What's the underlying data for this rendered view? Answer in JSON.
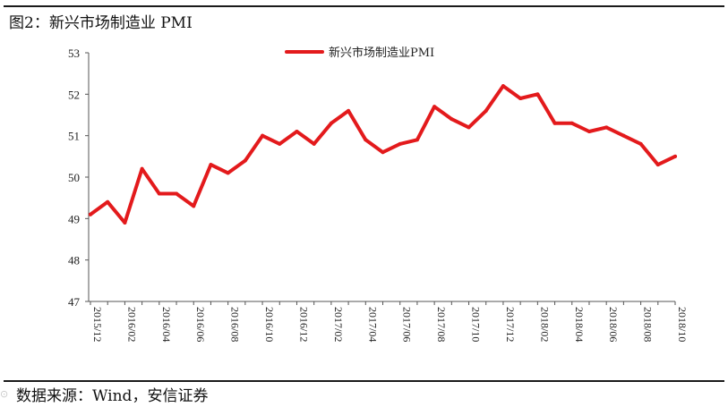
{
  "title": "图2：新兴市场制造业 PMI",
  "source": "数据来源：Wind，安信证券",
  "watermark_icon": "watermark-logo",
  "colors": {
    "line": "#e31a1c",
    "axis": "#555555"
  },
  "chart_data": {
    "type": "line",
    "title": "图2：新兴市场制造业 PMI",
    "xlabel": "",
    "ylabel": "",
    "ylim": [
      47,
      53
    ],
    "yticks": [
      47,
      48,
      49,
      50,
      51,
      52,
      53
    ],
    "grid": false,
    "legend": "top-center",
    "x": [
      "2015/12",
      "2016/01",
      "2016/02",
      "2016/03",
      "2016/04",
      "2016/05",
      "2016/06",
      "2016/07",
      "2016/08",
      "2016/09",
      "2016/10",
      "2016/11",
      "2016/12",
      "2017/01",
      "2017/02",
      "2017/03",
      "2017/04",
      "2017/05",
      "2017/06",
      "2017/07",
      "2017/08",
      "2017/09",
      "2017/10",
      "2017/11",
      "2017/12",
      "2018/01",
      "2018/02",
      "2018/03",
      "2018/04",
      "2018/05",
      "2018/06",
      "2018/07",
      "2018/08",
      "2018/09",
      "2018/10"
    ],
    "xtick_labels": [
      "2015/12",
      "2016/02",
      "2016/04",
      "2016/06",
      "2016/08",
      "2016/10",
      "2016/12",
      "2017/02",
      "2017/04",
      "2017/06",
      "2017/08",
      "2017/10",
      "2017/12",
      "2018/02",
      "2018/04",
      "2018/06",
      "2018/08",
      "2018/10"
    ],
    "series": [
      {
        "name": "新兴市场制造业PMI",
        "values": [
          49.1,
          49.4,
          48.9,
          50.2,
          49.6,
          49.6,
          49.3,
          50.3,
          50.1,
          50.4,
          51.0,
          50.8,
          51.1,
          50.8,
          51.3,
          51.6,
          50.9,
          50.6,
          50.8,
          50.9,
          51.7,
          51.4,
          51.2,
          51.6,
          52.2,
          51.9,
          52.0,
          51.3,
          51.3,
          51.1,
          51.2,
          51.0,
          50.8,
          50.3,
          50.5
        ]
      }
    ]
  }
}
